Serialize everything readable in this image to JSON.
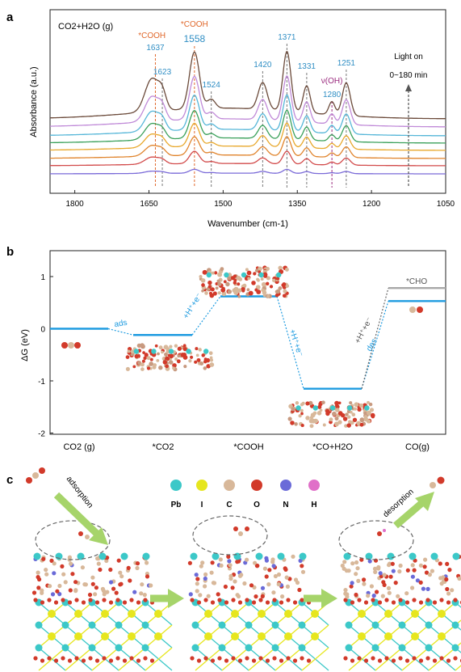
{
  "panel_labels": {
    "a": "a",
    "b": "b",
    "c": "c"
  },
  "colors": {
    "orange": "#e0672a",
    "blue": "#2f8ec4",
    "purple": "#9a2a7e",
    "level": "#1e9be0",
    "cho": "#a8a8a8",
    "arrow_green": "#a6d46a"
  },
  "chart_data": [
    {
      "panel": "a",
      "type": "line",
      "title": "CO2+H2O (g)",
      "xlabel": "Wavenumber (cm-1)",
      "ylabel": "Absorbance (a.u.)",
      "xlim": [
        1850,
        1050
      ],
      "x_reversed": true,
      "xticks": [
        1800,
        1650,
        1500,
        1350,
        1200,
        1050
      ],
      "grid": false,
      "series_colors": [
        "#6b4a3a",
        "#c08ad8",
        "#55b6d8",
        "#3aa05a",
        "#e8a82c",
        "#e0842c",
        "#d24a4a",
        "#7a6ad8"
      ],
      "series_count": 8,
      "annotations": [
        {
          "text": "*COOH",
          "x": 1644,
          "color": "orange"
        },
        {
          "text": "1637",
          "x": 1637,
          "color": "blue"
        },
        {
          "text": "1623",
          "x": 1623,
          "color": "blue"
        },
        {
          "text": "*COOH",
          "x": 1558,
          "color": "orange"
        },
        {
          "text": "1558",
          "x": 1558,
          "color": "blue"
        },
        {
          "text": "1524",
          "x": 1524,
          "color": "blue"
        },
        {
          "text": "1420",
          "x": 1420,
          "color": "blue"
        },
        {
          "text": "1371",
          "x": 1371,
          "color": "blue"
        },
        {
          "text": "1331",
          "x": 1331,
          "color": "blue"
        },
        {
          "text": "ν(OH)",
          "x": 1280,
          "color": "purple"
        },
        {
          "text": "1280",
          "x": 1280,
          "color": "blue"
        },
        {
          "text": "1251",
          "x": 1251,
          "color": "blue"
        }
      ],
      "side_note": [
        "Light on",
        "0~180 min"
      ]
    },
    {
      "panel": "b",
      "type": "line",
      "title": "",
      "ylabel": "ΔG (eV)",
      "ylim": [
        -2,
        1.5
      ],
      "yticks": [
        1,
        0,
        -1,
        -2
      ],
      "categories": [
        "CO2 (g)",
        "*CO2",
        "*COOH",
        "*CO+H2O",
        "CO(g)"
      ],
      "levels": [
        0.0,
        -0.12,
        0.62,
        -1.15,
        0.53
      ],
      "cho_level": 0.78,
      "cho_label": "*CHO",
      "step_labels": [
        "ads",
        "+H⁺+e⁻",
        "+H⁺+e⁻",
        "des"
      ],
      "cho_step_label": "+H⁺+e⁻"
    }
  ],
  "legend_c": [
    "Pb",
    "I",
    "C",
    "O",
    "N",
    "H"
  ],
  "legend_c_colors": [
    "#3cc8c8",
    "#e6e61e",
    "#d8b89a",
    "#d23a2a",
    "#6a6ad8",
    "#e070c8"
  ],
  "panel_c_labels": {
    "adsorption": "adsorption",
    "desorption": "desorption"
  }
}
